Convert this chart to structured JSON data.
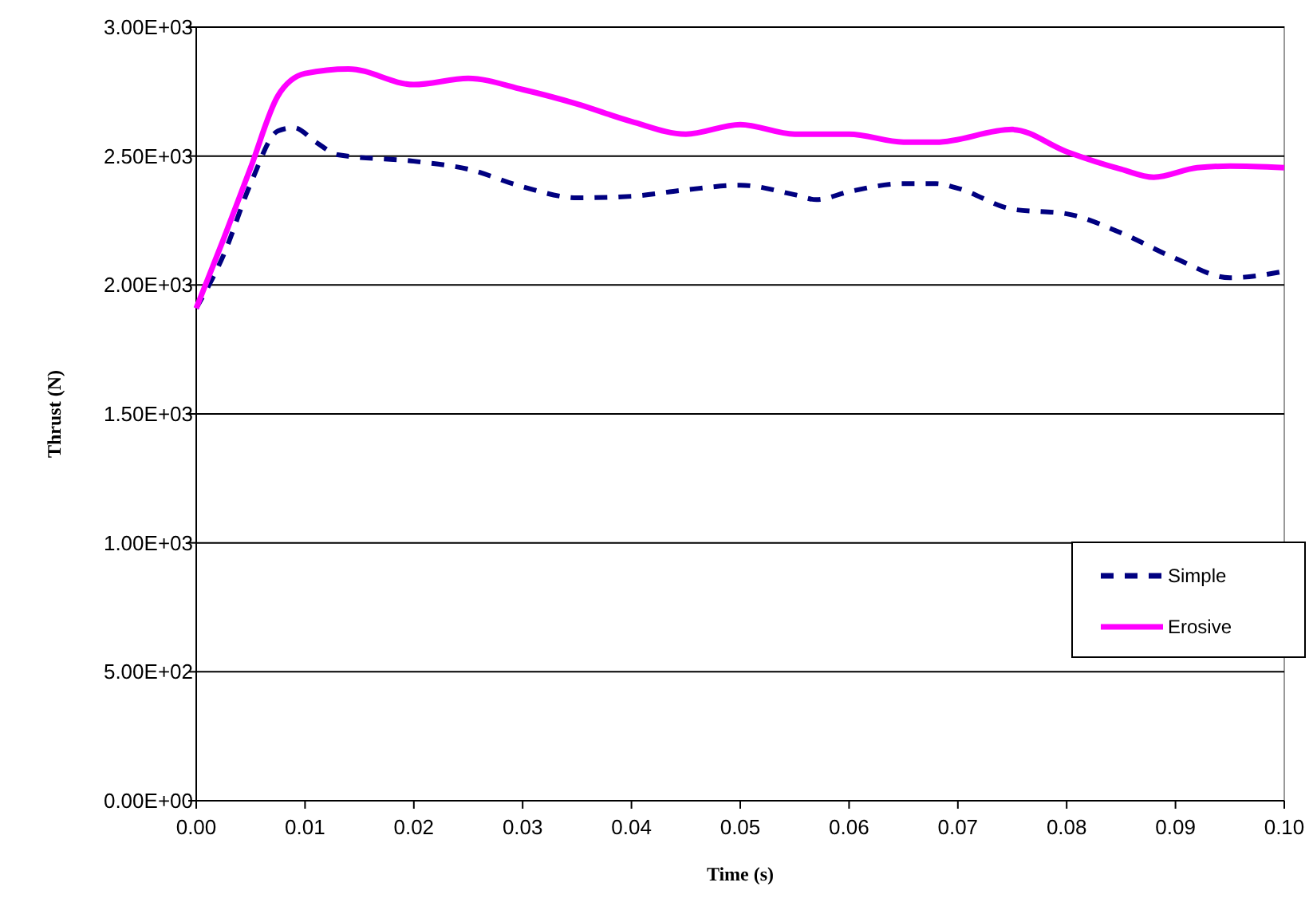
{
  "chart_data": {
    "type": "line",
    "xlabel": "Time (s)",
    "ylabel": "Thrust (N)",
    "xlim": [
      0,
      0.1
    ],
    "xticks": [
      {
        "value": 0,
        "label": "0.00"
      },
      {
        "value": 0.01,
        "label": "0.01"
      },
      {
        "value": 0.02,
        "label": "0.02"
      },
      {
        "value": 0.03,
        "label": "0.03"
      },
      {
        "value": 0.04,
        "label": "0.04"
      },
      {
        "value": 0.05,
        "label": "0.05"
      },
      {
        "value": 0.06,
        "label": "0.06"
      },
      {
        "value": 0.07,
        "label": "0.07"
      },
      {
        "value": 0.08,
        "label": "0.08"
      },
      {
        "value": 0.09,
        "label": "0.09"
      },
      {
        "value": 0.1,
        "label": "0.10"
      }
    ],
    "ylim": [
      0,
      3000
    ],
    "yticks": [
      {
        "value": 0,
        "label": "0.00E+00"
      },
      {
        "value": 500,
        "label": "5.00E+02"
      },
      {
        "value": 1000,
        "label": "1.00E+03"
      },
      {
        "value": 1500,
        "label": "1.50E+03"
      },
      {
        "value": 2000,
        "label": "2.00E+03"
      },
      {
        "value": 2500,
        "label": "2.50E+03"
      },
      {
        "value": 3000,
        "label": "3.00E+03"
      }
    ],
    "grid": "y",
    "legend": "right",
    "marker": "none",
    "series": [
      {
        "name": "Simple",
        "color": "#000080",
        "line_style": "dashed",
        "x": [
          0,
          0.0025,
          0.005,
          0.0075,
          0.009,
          0.011,
          0.013,
          0.02,
          0.025,
          0.03,
          0.035,
          0.04,
          0.045,
          0.05,
          0.055,
          0.057,
          0.06,
          0.065,
          0.068,
          0.07,
          0.075,
          0.08,
          0.085,
          0.09,
          0.095,
          0.1
        ],
        "values": [
          1910,
          2115,
          2393,
          2597,
          2610,
          2554,
          2505,
          2480,
          2449,
          2381,
          2338,
          2344,
          2369,
          2387,
          2350,
          2331,
          2362,
          2393,
          2393,
          2375,
          2294,
          2276,
          2202,
          2103,
          2028,
          2053
        ]
      },
      {
        "name": "Erosive",
        "color": "#ff00ff",
        "line_style": "solid",
        "x": [
          0,
          0.0025,
          0.005,
          0.0075,
          0.01,
          0.014,
          0.02,
          0.025,
          0.03,
          0.035,
          0.04,
          0.045,
          0.05,
          0.055,
          0.06,
          0.065,
          0.068,
          0.075,
          0.08,
          0.085,
          0.088,
          0.092,
          0.095,
          0.1
        ],
        "values": [
          1910,
          2177,
          2455,
          2733,
          2820,
          2838,
          2777,
          2801,
          2758,
          2702,
          2634,
          2585,
          2622,
          2585,
          2585,
          2554,
          2554,
          2603,
          2517,
          2449,
          2418,
          2455,
          2461,
          2455
        ]
      }
    ]
  }
}
